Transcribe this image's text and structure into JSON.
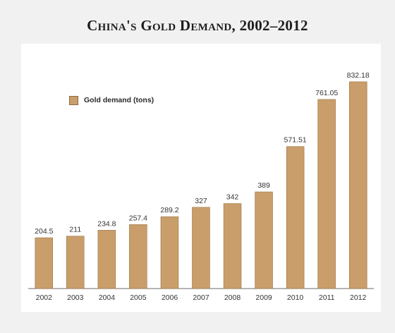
{
  "chart_data": {
    "type": "bar",
    "title": "China's Gold Demand, 2002–2012",
    "categories": [
      "2002",
      "2003",
      "2004",
      "2005",
      "2006",
      "2007",
      "2008",
      "2009",
      "2010",
      "2011",
      "2012"
    ],
    "series": [
      {
        "name": "Gold demand (tons)",
        "values": [
          204.5,
          211,
          234.8,
          257.4,
          289.2,
          327,
          342,
          389,
          571.51,
          761.05,
          832.18
        ],
        "labels": [
          "204.5",
          "211",
          "234.8",
          "257.4",
          "289.2",
          "327",
          "342",
          "389",
          "571.51",
          "761.05",
          "832.18"
        ]
      }
    ],
    "xlabel": "",
    "ylabel": "",
    "ylim": [
      0,
      900
    ],
    "grid": false,
    "legend": "top-left",
    "colors": {
      "bar": "#c99e6a",
      "bar_border": "#9b7445",
      "axis": "#6b6b6b",
      "text": "#333333"
    }
  }
}
